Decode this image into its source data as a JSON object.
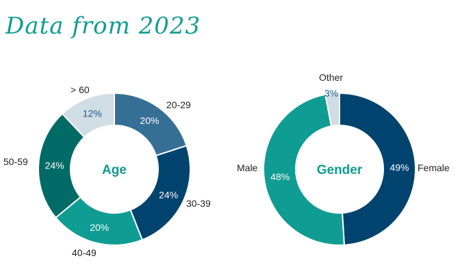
{
  "page": {
    "title": "Data from 2023"
  },
  "chart_data": [
    {
      "type": "pie",
      "title": "Age",
      "categories": [
        "20-29",
        "30-39",
        "40-49",
        "50-59",
        "> 60"
      ],
      "values": [
        20,
        24,
        20,
        24,
        12
      ],
      "value_labels": [
        "20%",
        "24%",
        "20%",
        "24%",
        "12%"
      ],
      "colors": [
        "#356f95",
        "#00436f",
        "#0f9c92",
        "#006b66",
        "#d0dde5"
      ]
    },
    {
      "type": "pie",
      "title": "Gender",
      "categories": [
        "Female",
        "Male",
        "Other"
      ],
      "values": [
        49,
        48,
        3
      ],
      "value_labels": [
        "49%",
        "48%",
        "3%"
      ],
      "colors": [
        "#00436f",
        "#0f9c92",
        "#d0dde5"
      ]
    }
  ]
}
